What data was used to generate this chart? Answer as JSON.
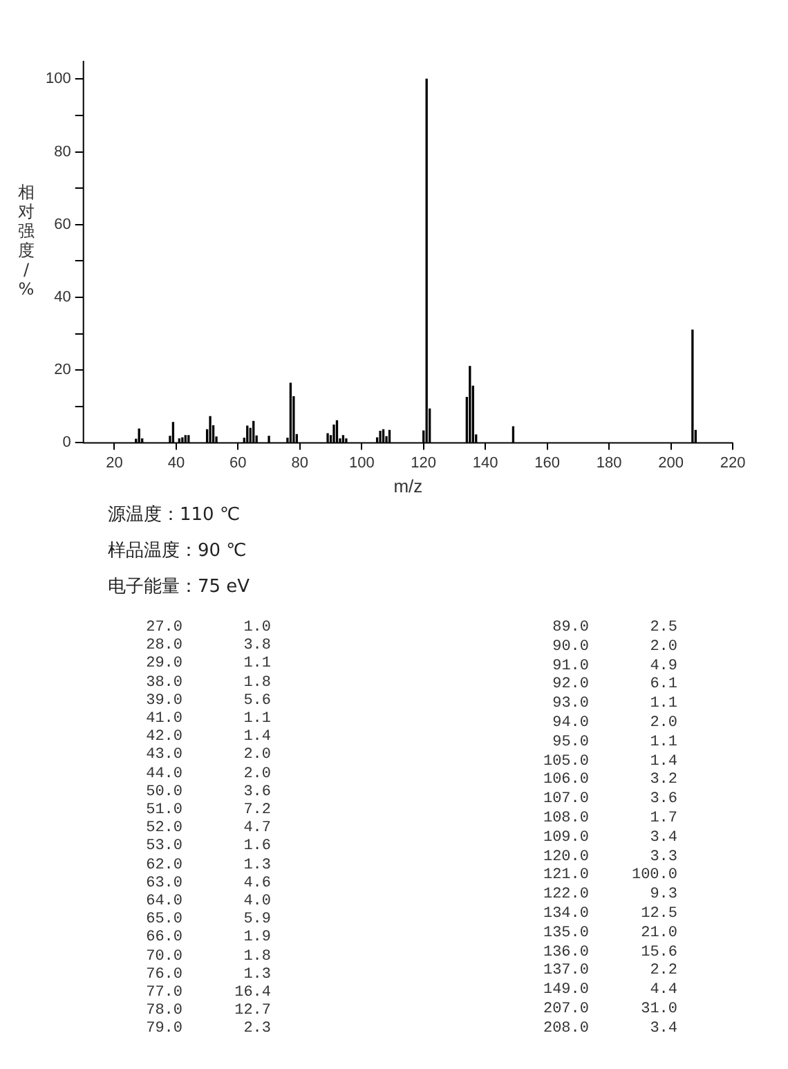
{
  "chart_data": [
    {
      "type": "bar",
      "xlabel": "m/z",
      "ylabel": "相对强度/%",
      "x": [
        27,
        28,
        29,
        38,
        39,
        41,
        42,
        43,
        44,
        50,
        51,
        52,
        53,
        62,
        63,
        64,
        65,
        66,
        70,
        76,
        77,
        78,
        79,
        89,
        90,
        91,
        92,
        93,
        94,
        95,
        105,
        106,
        107,
        108,
        109,
        120,
        121,
        122,
        134,
        135,
        136,
        137,
        149,
        207,
        208
      ],
      "values": [
        1.0,
        3.8,
        1.1,
        1.8,
        5.6,
        1.1,
        1.4,
        2.0,
        2.0,
        3.6,
        7.2,
        4.7,
        1.6,
        1.3,
        4.6,
        4.0,
        5.9,
        1.9,
        1.8,
        1.3,
        16.4,
        12.7,
        2.3,
        2.5,
        2.0,
        4.9,
        6.1,
        1.1,
        2.0,
        1.1,
        1.4,
        3.2,
        3.6,
        1.7,
        3.4,
        3.3,
        100.0,
        9.3,
        12.5,
        21.0,
        15.6,
        2.2,
        4.4,
        31.0,
        3.4
      ],
      "color": "#000000",
      "xlim": [
        10,
        220
      ],
      "xticks": [
        20,
        40,
        60,
        80,
        100,
        120,
        140,
        160,
        180,
        200,
        220
      ],
      "ylim": [
        0,
        105
      ],
      "yticks": [
        0,
        {
          "value": 10,
          "label": null
        },
        20,
        {
          "value": 30,
          "label": null
        },
        40,
        {
          "value": 50,
          "label": null
        },
        60,
        {
          "value": 70,
          "label": null
        },
        80,
        {
          "value": 90,
          "label": null
        },
        100
      ],
      "grid": false,
      "legend": false,
      "annotations": [
        "源温度：110 ℃",
        "样品温度：90 ℃",
        "电子能量：75 eV"
      ]
    },
    {
      "type": "other",
      "annotations": [
        "27.0",
        "1.0",
        "28.0",
        "3.8",
        "29.0",
        "1.1",
        "38.0",
        "1.8",
        "39.0",
        "5.6",
        "41.0",
        "1.1",
        "42.0",
        "1.4",
        "43.0",
        "2.0",
        "44.0",
        "2.0",
        "50.0",
        "3.6",
        "51.0",
        "7.2",
        "52.0",
        "4.7",
        "53.0",
        "1.6",
        "62.0",
        "1.3",
        "63.0",
        "4.6",
        "64.0",
        "4.0",
        "65.0",
        "5.9",
        "66.0",
        "1.9",
        "70.0",
        "1.8",
        "76.0",
        "1.3",
        "77.0",
        "16.4",
        "78.0",
        "12.7",
        "79.0",
        "2.3",
        "89.0",
        "2.5",
        "90.0",
        "2.0",
        "91.0",
        "4.9",
        "92.0",
        "6.1",
        "93.0",
        "1.1",
        "94.0",
        "2.0",
        "95.0",
        "1.1",
        "105.0",
        "1.4",
        "106.0",
        "3.2",
        "107.0",
        "3.6",
        "108.0",
        "1.7",
        "109.0",
        "3.4",
        "120.0",
        "3.3",
        "121.0",
        "100.0",
        "122.0",
        "9.3",
        "134.0",
        "12.5",
        "135.0",
        "21.0",
        "136.0",
        "15.6",
        "137.0",
        "2.2",
        "149.0",
        "4.4",
        "207.0",
        "31.0",
        "208.0",
        "3.4"
      ]
    }
  ]
}
